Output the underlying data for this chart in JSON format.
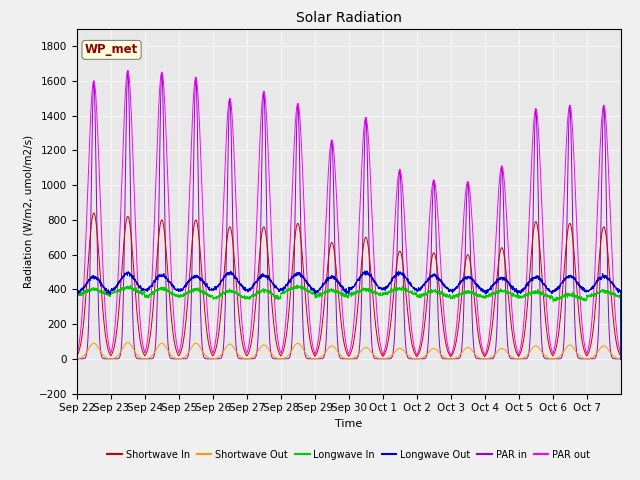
{
  "title": "Solar Radiation",
  "xlabel": "Time",
  "ylabel": "Radiation (W/m2, umol/m2/s)",
  "ylim": [
    -200,
    1900
  ],
  "yticks": [
    -200,
    0,
    200,
    400,
    600,
    800,
    1000,
    1200,
    1400,
    1600,
    1800
  ],
  "annotation": "WP_met",
  "legend_entries": [
    "Shortwave In",
    "Shortwave Out",
    "Longwave In",
    "Longwave Out",
    "PAR in",
    "PAR out"
  ],
  "colors": {
    "shortwave_in": "#cc0000",
    "shortwave_out": "#ff9900",
    "longwave_in": "#00cc00",
    "longwave_out": "#0000cc",
    "par_in": "#9900cc",
    "par_out": "#ff00ff"
  },
  "n_days": 16,
  "xtick_labels": [
    "Sep 22",
    "Sep 23",
    "Sep 24",
    "Sep 25",
    "Sep 26",
    "Sep 27",
    "Sep 28",
    "Sep 29",
    "Sep 30",
    "Oct 1",
    "Oct 2",
    "Oct 3",
    "Oct 4",
    "Oct 5",
    "Oct 6",
    "Oct 7"
  ],
  "sw_in_peaks": [
    840,
    820,
    800,
    800,
    760,
    760,
    780,
    670,
    700,
    620,
    610,
    600,
    640,
    790,
    780,
    760
  ],
  "sw_out_peaks": [
    90,
    95,
    90,
    90,
    85,
    80,
    90,
    75,
    65,
    60,
    60,
    65,
    60,
    75,
    80,
    75
  ],
  "par_in_peaks": [
    1600,
    1660,
    1650,
    1620,
    1500,
    1540,
    1470,
    1260,
    1390,
    1090,
    1030,
    1020,
    1110,
    1440,
    1460,
    1460
  ],
  "par_out_peaks": [
    1600,
    1660,
    1650,
    1620,
    1500,
    1540,
    1470,
    1260,
    1390,
    1090,
    1030,
    1020,
    1110,
    1440,
    1460,
    1460
  ],
  "lw_in_base": [
    370,
    380,
    360,
    360,
    350,
    350,
    380,
    360,
    370,
    375,
    360,
    355,
    360,
    355,
    340,
    360
  ],
  "lw_in_peak": [
    400,
    410,
    405,
    400,
    390,
    395,
    415,
    395,
    400,
    405,
    390,
    385,
    390,
    385,
    370,
    390
  ],
  "lw_out_base": [
    380,
    395,
    395,
    395,
    400,
    395,
    400,
    385,
    400,
    400,
    395,
    390,
    385,
    385,
    390,
    390
  ],
  "lw_out_peak": [
    470,
    490,
    480,
    475,
    495,
    480,
    490,
    470,
    495,
    495,
    480,
    470,
    465,
    470,
    475,
    475
  ]
}
